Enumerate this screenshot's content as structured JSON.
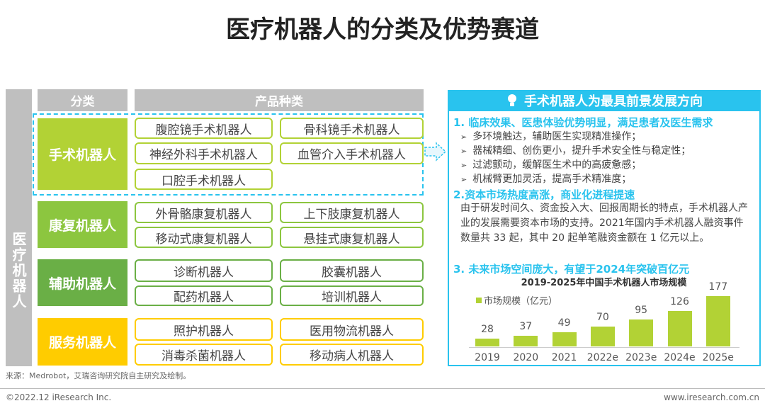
{
  "title": "医疗机器人的分类及优势赛道",
  "left_label": "医疗机器人",
  "headers": {
    "category": "分类",
    "products": "产品种类"
  },
  "categories": [
    {
      "name": "手术机器人",
      "color": "#b2d235",
      "products": [
        "腹腔镜手术机器人",
        "骨科镜手术机器人",
        "神经外科手术机器人",
        "血管介入手术机器人",
        "口腔手术机器人"
      ]
    },
    {
      "name": "康复机器人",
      "color": "#8cc63f",
      "products": [
        "外骨骼康复机器人",
        "上下肢康复机器人",
        "移动式康复机器人",
        "悬挂式康复机器人"
      ]
    },
    {
      "name": "辅助机器人",
      "color": "#6aaf46",
      "products": [
        "诊断机器人",
        "胶囊机器人",
        "配药机器人",
        "培训机器人"
      ]
    },
    {
      "name": "服务机器人",
      "color": "#ffcc00",
      "products": [
        "照护机器人",
        "医用物流机器人",
        "消毒杀菌机器人",
        "移动病人机器人"
      ]
    }
  ],
  "panel": {
    "title": "手术机器人为最具前景发展方向",
    "icon": "lightbulb-icon",
    "accent": "#29c3ee",
    "sec1": "1. 临床效果、医患体验优势明显，满足患者及医生需求",
    "bullets": [
      "多环境触达，辅助医生实现精准操作；",
      "器械精细、创伤更小，提升手术安全性与稳定性；",
      "过滤颤动，缓解医生术中的高疲惫感；",
      "机械臂更加灵活，提高手术精准度；"
    ],
    "bullet_marker": "➢",
    "sec2": "2.资本市场热度高涨，商业化进程提速",
    "para": "由于研发时间久、资金投入大、回报周期长的特点，手术机器人产业的发展需要资本市场的支持。2021年国内手术机器人融资事件数量共 33 起，其中 20 起单笔融资金额在 1 亿元以上。",
    "sec3": "3. 未来市场空间庞大，有望于2024年突破百亿元"
  },
  "chart_data": {
    "type": "bar",
    "title": "2019-2025年中国手术机器人市场规模",
    "categories": [
      "2019",
      "2020",
      "2021",
      "2022e",
      "2023e",
      "2024e",
      "2025e"
    ],
    "series": [
      {
        "name": "市场规模（亿元）",
        "values": [
          28,
          37,
          49,
          70,
          95,
          126,
          177
        ],
        "color": "#b2d235"
      }
    ],
    "legend": "top-left",
    "grid": false
  },
  "source": "来源：Medrobot，艾瑞咨询研究院自主研究及绘制。",
  "copyright": "©2022.12 iResearch Inc.",
  "website": "www.iresearch.com.cn"
}
